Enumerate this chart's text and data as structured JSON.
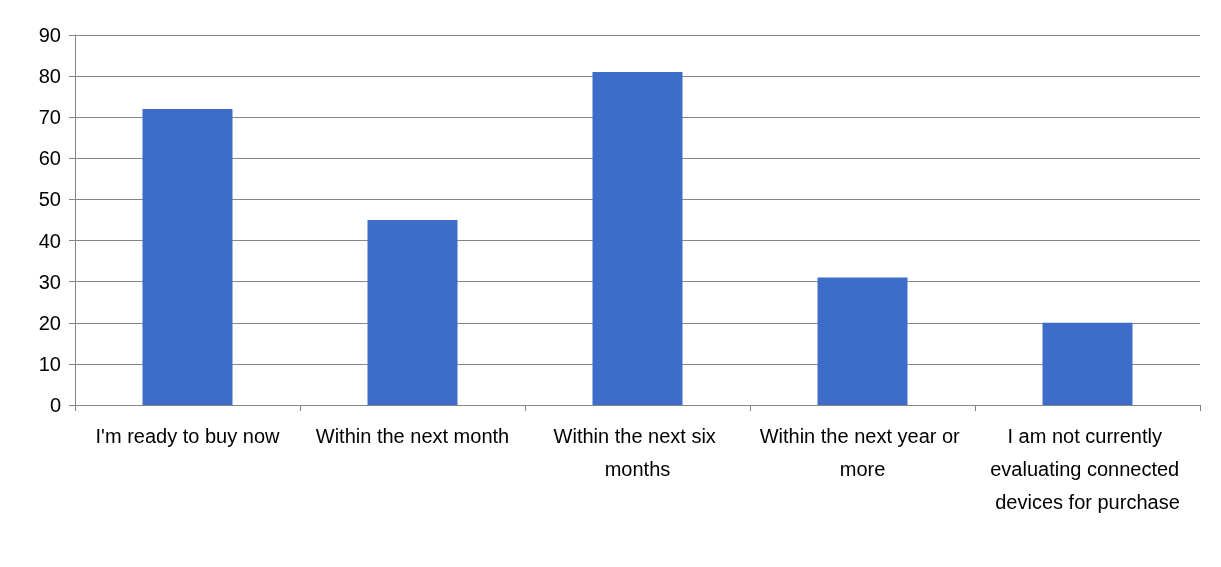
{
  "chart_data": {
    "type": "bar",
    "categories": [
      "I'm ready to buy now",
      "Within the next month",
      "Within the next six months",
      "Within the next year or more",
      "I am not currently evaluating connected devices for purchase"
    ],
    "values": [
      72,
      45,
      81,
      31,
      20
    ],
    "color": "#3d6dc9",
    "ylim": [
      0,
      90
    ],
    "yticks": [
      0,
      10,
      20,
      30,
      40,
      50,
      60,
      70,
      80,
      90
    ],
    "grid": "y"
  }
}
